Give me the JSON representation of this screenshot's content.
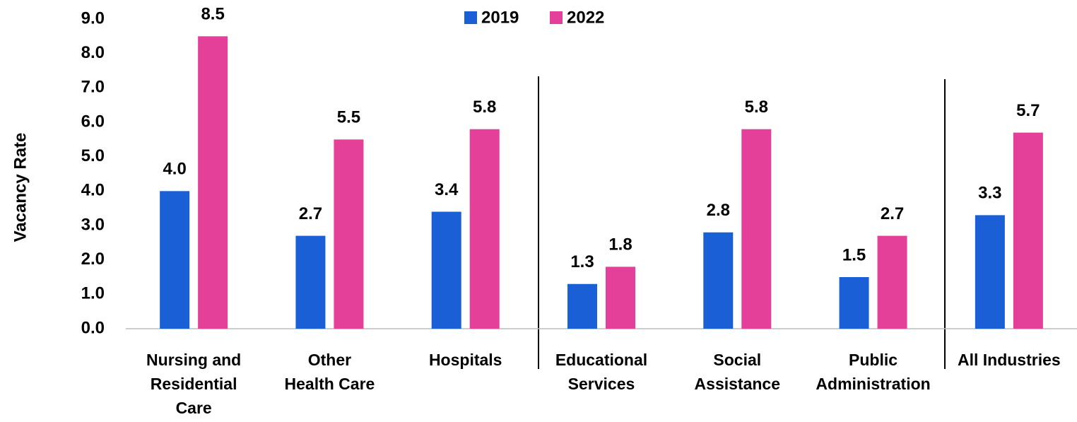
{
  "chart_data": {
    "type": "bar",
    "y_label": "Vacancy Rate",
    "categories": [
      "Nursing and\nResidential\nCare",
      "Other\nHealth Care",
      "Hospitals",
      "Educational\nServices",
      "Social\nAssistance",
      "Public\nAdministration",
      "All Industries"
    ],
    "series": [
      {
        "name": "2019",
        "color": "#1a5fd6",
        "values": [
          4.0,
          2.7,
          3.4,
          1.3,
          2.8,
          1.5,
          3.3
        ],
        "value_labels": [
          "4.0",
          "2.7",
          "3.4",
          "1.3",
          "2.8",
          "1.5",
          "3.3"
        ]
      },
      {
        "name": "2022",
        "color": "#e4409a",
        "values": [
          8.5,
          5.5,
          5.8,
          1.8,
          5.8,
          2.7,
          5.7
        ],
        "value_labels": [
          "8.5",
          "5.5",
          "5.8",
          "1.8",
          "5.8",
          "2.7",
          "5.7"
        ]
      }
    ],
    "ylim": [
      0,
      9
    ],
    "yticks": [
      {
        "value": 0,
        "label": "0.0"
      },
      {
        "value": 1,
        "label": "1.0"
      },
      {
        "value": 2,
        "label": "2.0"
      },
      {
        "value": 3,
        "label": "3.0"
      },
      {
        "value": 4,
        "label": "4.0"
      },
      {
        "value": 5,
        "label": "5.0"
      },
      {
        "value": 6,
        "label": "6.0"
      },
      {
        "value": 7,
        "label": "7.0"
      },
      {
        "value": 8,
        "label": "8.0"
      },
      {
        "value": 9,
        "label": "9.0"
      }
    ],
    "grid": false,
    "legend": "top"
  }
}
